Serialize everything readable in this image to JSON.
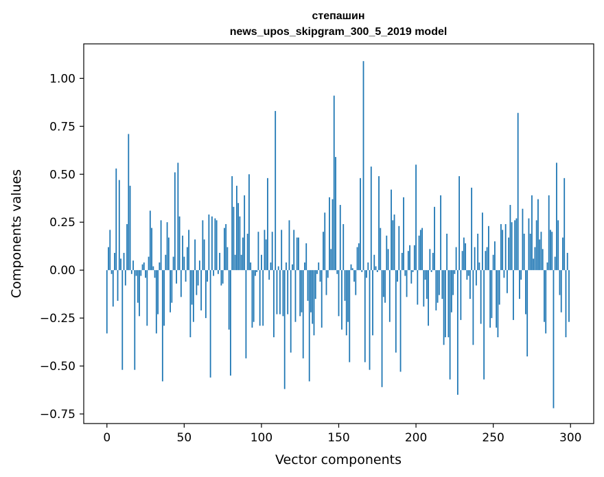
{
  "chart_data": {
    "type": "bar",
    "title": "степашин",
    "subtitle": "news_upos_skipgram_300_5_2019 model",
    "xlabel": "Vector components",
    "ylabel": "Components values",
    "xlim": [
      -15,
      315
    ],
    "ylim": [
      -0.8,
      1.18
    ],
    "xticks": [
      0,
      50,
      100,
      150,
      200,
      250,
      300
    ],
    "yticks": [
      -0.75,
      -0.5,
      -0.25,
      0.0,
      0.25,
      0.5,
      0.75,
      1.0
    ],
    "ytick_labels": [
      "−0.75",
      "−0.50",
      "−0.25",
      "0.00",
      "0.25",
      "0.50",
      "0.75",
      "1.00"
    ],
    "grid": false,
    "bar_color": "#1f77b4",
    "x": "0..299",
    "values": [
      -0.33,
      0.12,
      0.21,
      -0.02,
      -0.19,
      0.09,
      0.53,
      -0.16,
      0.47,
      0.06,
      -0.52,
      0.09,
      -0.08,
      0.24,
      0.71,
      0.44,
      -0.02,
      0.05,
      -0.52,
      -0.03,
      -0.17,
      -0.24,
      -0.03,
      0.03,
      0.04,
      -0.04,
      -0.29,
      0.07,
      0.31,
      0.22,
      0.02,
      -0.04,
      -0.33,
      -0.23,
      0.04,
      0.26,
      -0.58,
      -0.29,
      0.08,
      0.25,
      0.17,
      -0.22,
      -0.17,
      0.07,
      0.51,
      -0.07,
      0.56,
      0.28,
      -0.14,
      0.18,
      0.07,
      -0.06,
      0.12,
      0.21,
      -0.35,
      -0.18,
      -0.27,
      0.16,
      -0.13,
      -0.08,
      0.05,
      -0.21,
      0.26,
      0.16,
      -0.25,
      -0.06,
      0.29,
      -0.56,
      0.28,
      -0.03,
      0.27,
      0.26,
      -0.02,
      0.09,
      -0.08,
      -0.07,
      0.22,
      0.24,
      0.12,
      -0.31,
      -0.55,
      0.49,
      0.33,
      0.08,
      0.44,
      0.35,
      0.28,
      0.08,
      0.17,
      0.39,
      -0.46,
      0.19,
      0.5,
      0.04,
      -0.3,
      -0.27,
      -0.03,
      -0.01,
      0.2,
      -0.29,
      0.08,
      -0.29,
      0.21,
      0.16,
      0.48,
      -0.05,
      0.04,
      0.2,
      -0.35,
      0.83,
      -0.23,
      0.02,
      -0.23,
      0.21,
      -0.24,
      -0.62,
      0.04,
      -0.23,
      0.26,
      -0.43,
      0.03,
      0.21,
      -0.27,
      0.17,
      0.17,
      -0.24,
      -0.22,
      -0.46,
      0.04,
      0.14,
      -0.16,
      -0.58,
      -0.22,
      -0.28,
      -0.34,
      -0.15,
      -0.02,
      0.04,
      -0.06,
      -0.3,
      0.2,
      0.3,
      -0.13,
      -0.04,
      0.38,
      0.11,
      0.37,
      0.91,
      0.59,
      -0.02,
      -0.24,
      0.34,
      -0.31,
      0.24,
      -0.16,
      -0.34,
      -0.27,
      -0.48,
      0.03,
      0.01,
      -0.06,
      -0.13,
      0.12,
      0.14,
      0.48,
      -0.01,
      1.09,
      -0.48,
      -0.04,
      0.04,
      -0.52,
      0.54,
      -0.34,
      0.08,
      0.02,
      -0.01,
      0.49,
      0.22,
      -0.61,
      -0.14,
      -0.17,
      0.18,
      0.11,
      -0.27,
      0.42,
      0.26,
      0.29,
      -0.43,
      -0.06,
      0.23,
      -0.53,
      0.09,
      0.38,
      -0.03,
      -0.14,
      0.1,
      0.13,
      -0.07,
      -0.01,
      0.13,
      0.55,
      -0.18,
      0.18,
      0.21,
      0.22,
      -0.19,
      -0.05,
      -0.15,
      -0.29,
      0.11,
      -0.01,
      0.09,
      0.33,
      -0.21,
      -0.17,
      -0.13,
      0.39,
      -0.15,
      -0.39,
      -0.35,
      0.19,
      -0.35,
      -0.57,
      -0.22,
      -0.13,
      -0.02,
      0.12,
      -0.65,
      0.49,
      -0.26,
      0.1,
      0.17,
      0.14,
      -0.05,
      -0.03,
      -0.15,
      0.43,
      -0.39,
      0.12,
      -0.08,
      0.19,
      0.04,
      -0.28,
      0.3,
      -0.57,
      0.1,
      0.12,
      0.23,
      -0.3,
      -0.25,
      0.08,
      0.15,
      -0.3,
      -0.35,
      -0.18,
      0.24,
      0.21,
      -0.04,
      0.24,
      -0.12,
      0.17,
      0.34,
      0.25,
      -0.26,
      0.26,
      0.27,
      0.82,
      -0.15,
      -0.05,
      0.32,
      0.19,
      -0.23,
      -0.45,
      0.27,
      0.19,
      0.39,
      0.06,
      0.12,
      0.26,
      0.37,
      0.16,
      0.2,
      0.11,
      -0.27,
      -0.33,
      0.04,
      0.39,
      0.21,
      0.2,
      -0.72,
      0.07,
      0.56,
      0.26,
      -0.13,
      -0.22,
      0.17,
      0.48,
      -0.35,
      0.09,
      -0.27
    ]
  }
}
